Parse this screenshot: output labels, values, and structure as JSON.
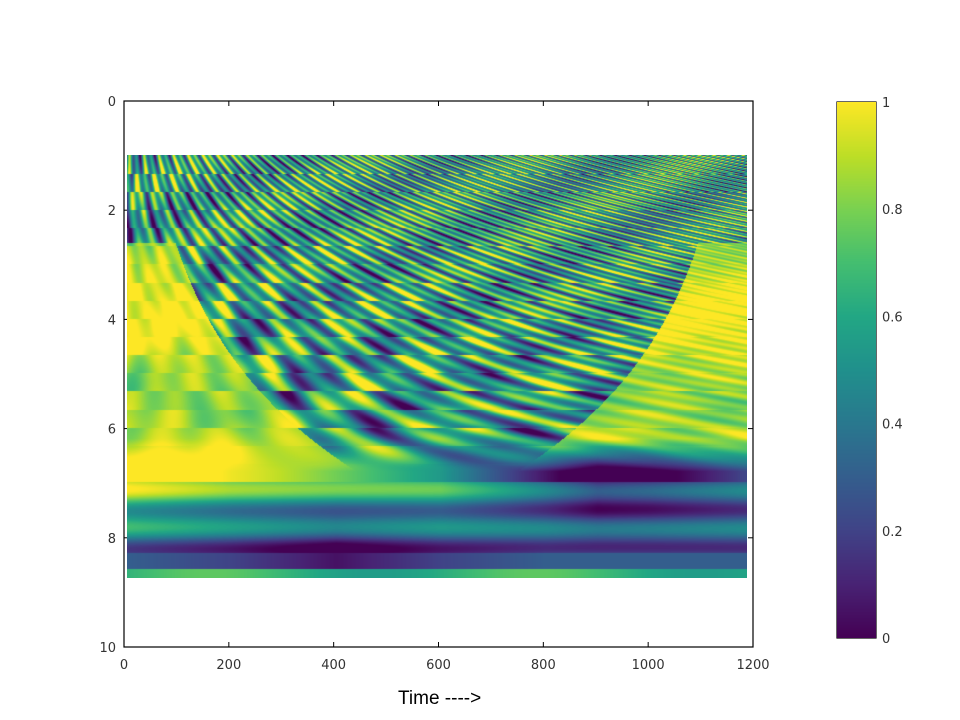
{
  "chart_data": [
    {
      "type": "heatmap",
      "title": "",
      "xlabel": "Time ---->",
      "ylabel": "",
      "xlim": [
        0,
        1200
      ],
      "ylim": [
        10,
        0
      ],
      "x_ticks": [
        0,
        200,
        400,
        600,
        800,
        1000,
        1200
      ],
      "y_ticks": [
        0,
        2,
        4,
        6,
        8,
        10
      ],
      "x_tick_labels": [
        "0",
        "200",
        "400",
        "600",
        "800",
        "1000",
        "1200"
      ],
      "y_tick_labels": [
        "0",
        "2",
        "4",
        "6",
        "8",
        "10"
      ],
      "data_extent": {
        "x": [
          0,
          1185
        ],
        "y": [
          1,
          8.75
        ]
      },
      "grid": false,
      "colormap": "viridis",
      "value_range": [
        0,
        1
      ],
      "colorbar": {
        "ticks": [
          0,
          0.2,
          0.4,
          0.6,
          0.8,
          1
        ],
        "tick_labels": [
          "0",
          "0.2",
          "0.4",
          "0.6",
          "0.8",
          "1"
        ],
        "colors": [
          "#440154",
          "#3b528b",
          "#21918c",
          "#5ec962",
          "#fde725"
        ]
      },
      "rows": [
        {
          "y": 7.0,
          "x": [
            0,
            200,
            400,
            600,
            800,
            900,
            1000,
            1185
          ],
          "values": [
            0.9,
            0.75,
            0.7,
            0.65,
            0.3,
            0.1,
            0.15,
            0.3
          ]
        },
        {
          "y": 8.3,
          "x": [
            0,
            200,
            400,
            600,
            800,
            1000,
            1185
          ],
          "values": [
            0.3,
            0.2,
            0.05,
            0.2,
            0.3,
            0.3,
            0.3
          ]
        }
      ]
    }
  ]
}
